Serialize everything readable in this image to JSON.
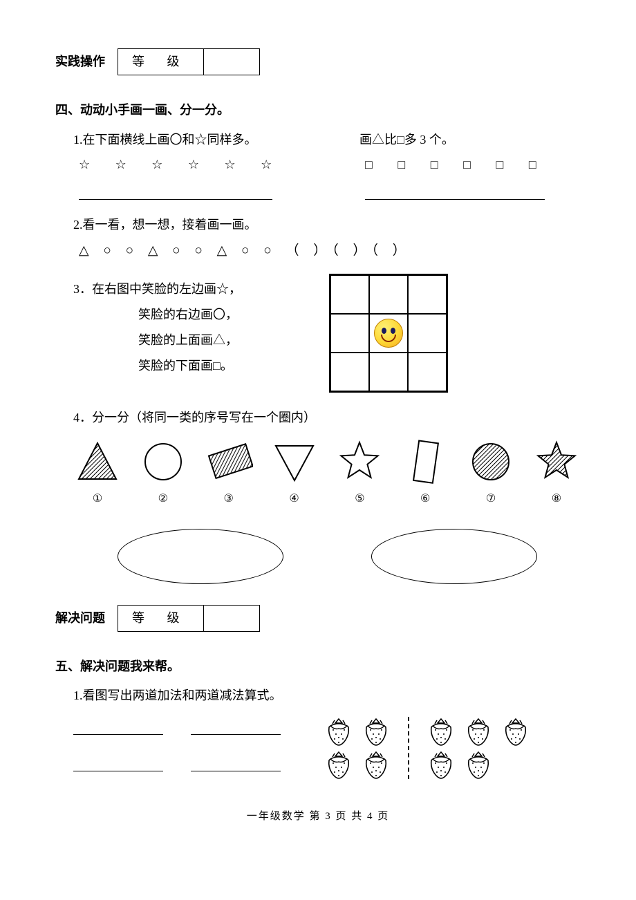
{
  "header1": {
    "label": "实践操作",
    "grade_text": "等 级"
  },
  "section4": {
    "title": "四、动动小手画一画、分一分。",
    "q1": {
      "left_text": "1.在下面横线上画〇和☆同样多。",
      "right_text": "画△比□多 3 个。",
      "stars": "☆  ☆  ☆  ☆  ☆  ☆",
      "squares": "□  □  □  □  □  □"
    },
    "q2": {
      "text": "2.看一看，想一想，接着画一画。",
      "pattern": "△  ○  ○  △  ○  ○  △  ○  ○ （   ）（   ）（   ）"
    },
    "q3": {
      "line1": "3．在右图中笑脸的左边画☆，",
      "line2": "笑脸的右边画〇，",
      "line3": "笑脸的上面画△，",
      "line4": "笑脸的下面画□。"
    },
    "q4": {
      "text": "4．分一分（将同一类的序号写在一个圈内）",
      "labels": [
        "①",
        "②",
        "③",
        "④",
        "⑤",
        "⑥",
        "⑦",
        "⑧"
      ],
      "shapes": [
        {
          "type": "triangle",
          "fill": "hatch",
          "stroke": "#000"
        },
        {
          "type": "circle",
          "fill": "none",
          "stroke": "#000"
        },
        {
          "type": "rect-rot",
          "fill": "hatch",
          "stroke": "#000"
        },
        {
          "type": "triangle-down",
          "fill": "none",
          "stroke": "#000"
        },
        {
          "type": "star",
          "fill": "none",
          "stroke": "#000"
        },
        {
          "type": "rect-tall",
          "fill": "none",
          "stroke": "#000"
        },
        {
          "type": "circle",
          "fill": "hatch",
          "stroke": "#000"
        },
        {
          "type": "star",
          "fill": "hatch",
          "stroke": "#000"
        }
      ]
    }
  },
  "header2": {
    "label": "解决问题",
    "grade_text": "等 级"
  },
  "section5": {
    "title": "五、解决问题我来帮。",
    "q1": {
      "text": "1.看图写出两道加法和两道减法算式。"
    },
    "strawberries": {
      "left_count": 4,
      "right_count": 5
    }
  },
  "footer": "一年级数学  第 3 页  共 4 页",
  "colors": {
    "text": "#000000",
    "bg": "#ffffff",
    "smiley_fill": "#fdd835",
    "smiley_border": "#c08000"
  }
}
